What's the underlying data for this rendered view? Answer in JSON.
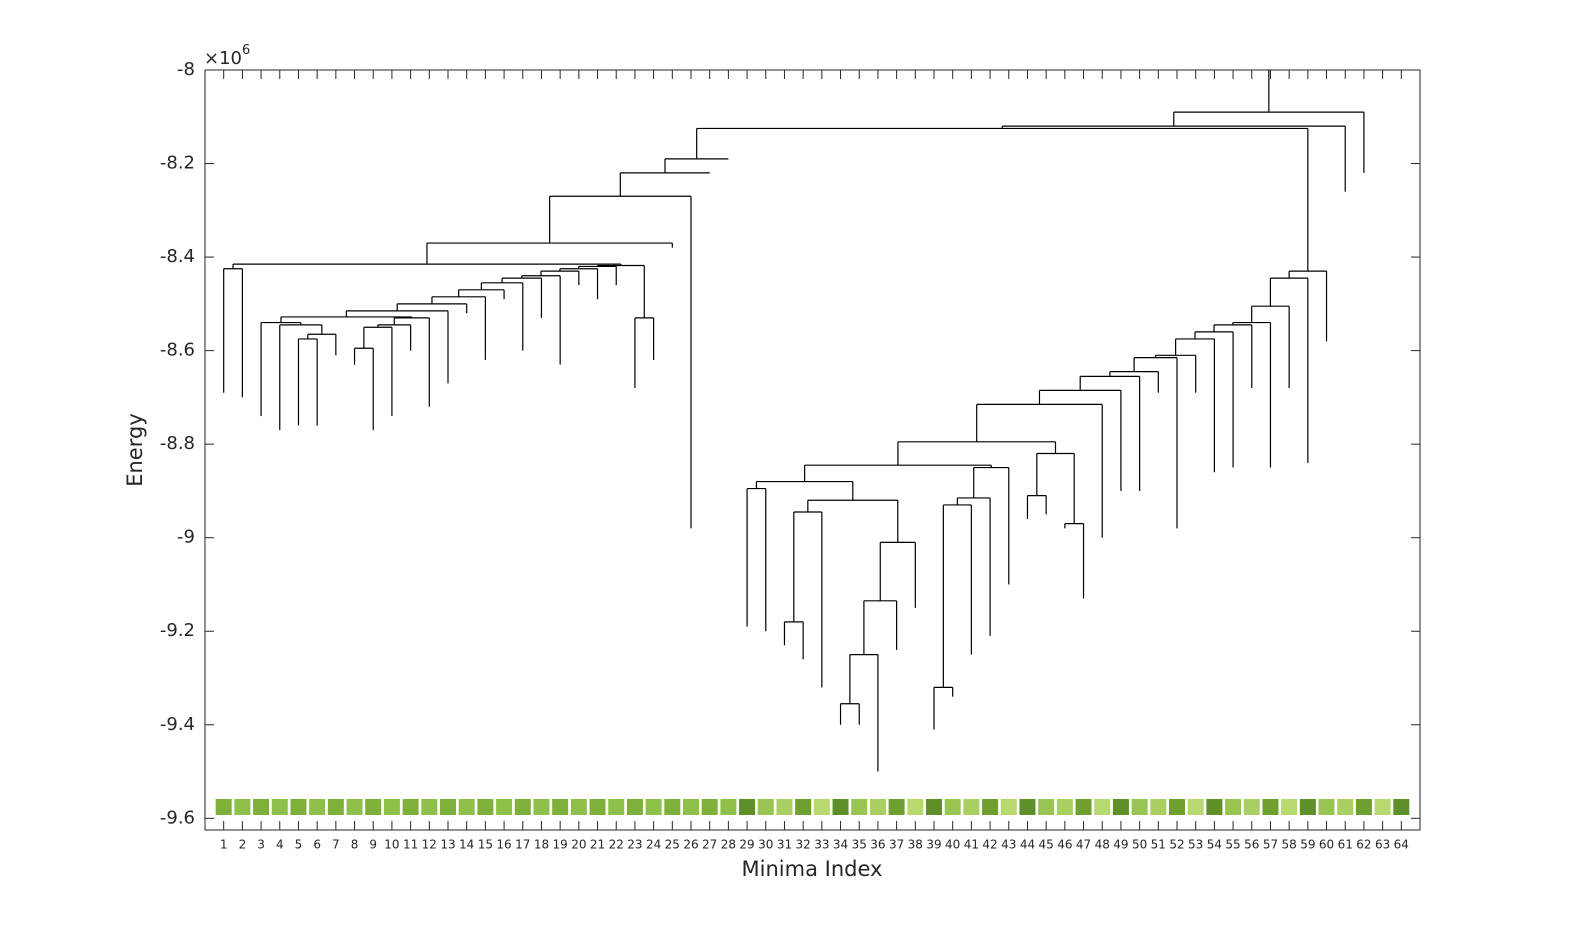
{
  "chart_data": {
    "type": "dendrogram",
    "x_label": "Minima Index",
    "y_label": "Energy",
    "y_multiplier": {
      "base": "×10",
      "exponent": "6"
    },
    "categories": [
      "1",
      "2",
      "3",
      "4",
      "5",
      "6",
      "7",
      "8",
      "9",
      "10",
      "11",
      "12",
      "13",
      "14",
      "15",
      "16",
      "17",
      "18",
      "19",
      "20",
      "21",
      "22",
      "23",
      "24",
      "25",
      "26",
      "27",
      "28",
      "29",
      "30",
      "31",
      "32",
      "33",
      "34",
      "35",
      "36",
      "37",
      "38",
      "39",
      "40",
      "41",
      "42",
      "43",
      "44",
      "45",
      "46",
      "47",
      "48",
      "49",
      "50",
      "51",
      "52",
      "53",
      "54",
      "55",
      "56",
      "57",
      "58",
      "59",
      "60",
      "61",
      "62",
      "63",
      "64"
    ],
    "leaf_energies": [
      -8.69,
      -8.7,
      -8.74,
      -8.77,
      -8.76,
      -8.76,
      -8.61,
      -8.63,
      -8.77,
      -8.74,
      -8.6,
      -8.72,
      -8.67,
      -8.52,
      -8.62,
      -8.49,
      -8.6,
      -8.53,
      -8.63,
      -8.46,
      -8.49,
      -8.46,
      -8.68,
      -8.62,
      -8.38,
      -8.98,
      -8.22,
      -8.19,
      -9.19,
      -9.2,
      -9.23,
      -9.26,
      -9.32,
      -9.4,
      -9.4,
      -9.5,
      -9.24,
      -9.15,
      -9.41,
      -9.34,
      -9.25,
      -9.21,
      -9.1,
      -8.96,
      -8.95,
      -8.98,
      -9.13,
      -9.0,
      -8.9,
      -8.9,
      -8.69,
      -8.98,
      -8.69,
      -8.86,
      -8.85,
      -8.68,
      -8.85,
      -8.68,
      -8.84,
      -8.58,
      -8.26,
      -8.22,
      null,
      null
    ],
    "merges": [
      [
        0,
        1,
        -8.425
      ],
      [
        4,
        5,
        -8.575
      ],
      [
        65,
        6,
        -8.565
      ],
      [
        3,
        66,
        -8.545
      ],
      [
        2,
        67,
        -8.54
      ],
      [
        7,
        8,
        -8.595
      ],
      [
        69,
        9,
        -8.55
      ],
      [
        70,
        10,
        -8.545
      ],
      [
        71,
        11,
        -8.53
      ],
      [
        68,
        72,
        -8.528
      ],
      [
        73,
        12,
        -8.515
      ],
      [
        74,
        13,
        -8.5
      ],
      [
        75,
        14,
        -8.485
      ],
      [
        76,
        15,
        -8.47
      ],
      [
        77,
        16,
        -8.455
      ],
      [
        78,
        17,
        -8.445
      ],
      [
        79,
        18,
        -8.44
      ],
      [
        80,
        19,
        -8.43
      ],
      [
        81,
        20,
        -8.425
      ],
      [
        82,
        21,
        -8.42
      ],
      [
        22,
        23,
        -8.53
      ],
      [
        83,
        84,
        -8.418
      ],
      [
        64,
        85,
        -8.415
      ],
      [
        86,
        24,
        -8.37
      ],
      [
        87,
        25,
        -8.27
      ],
      [
        88,
        26,
        -8.22
      ],
      [
        89,
        27,
        -8.19
      ],
      [
        33,
        34,
        -9.355
      ],
      [
        91,
        35,
        -9.25
      ],
      [
        92,
        36,
        -9.135
      ],
      [
        93,
        37,
        -9.01
      ],
      [
        30,
        31,
        -9.18
      ],
      [
        95,
        32,
        -8.945
      ],
      [
        96,
        94,
        -8.92
      ],
      [
        28,
        29,
        -8.895
      ],
      [
        98,
        97,
        -8.88
      ],
      [
        38,
        39,
        -9.32
      ],
      [
        100,
        40,
        -8.93
      ],
      [
        101,
        41,
        -8.915
      ],
      [
        102,
        42,
        -8.85
      ],
      [
        99,
        103,
        -8.845
      ],
      [
        43,
        44,
        -8.91
      ],
      [
        45,
        46,
        -8.97
      ],
      [
        105,
        106,
        -8.82
      ],
      [
        104,
        107,
        -8.795
      ],
      [
        108,
        47,
        -8.715
      ],
      [
        109,
        48,
        -8.685
      ],
      [
        110,
        49,
        -8.655
      ],
      [
        111,
        50,
        -8.645
      ],
      [
        112,
        51,
        -8.615
      ],
      [
        113,
        52,
        -8.61
      ],
      [
        114,
        53,
        -8.575
      ],
      [
        115,
        54,
        -8.56
      ],
      [
        116,
        55,
        -8.545
      ],
      [
        117,
        56,
        -8.54
      ],
      [
        118,
        57,
        -8.505
      ],
      [
        119,
        58,
        -8.445
      ],
      [
        120,
        59,
        -8.43
      ],
      [
        90,
        121,
        -8.125
      ],
      [
        122,
        60,
        -8.12
      ],
      [
        123,
        61,
        -8.09
      ]
    ],
    "xlim": [
      0,
      65
    ],
    "ylim": [
      -9.625,
      -8
    ],
    "yticks": [
      -9.6,
      -9.4,
      -9.2,
      -9,
      -8.8,
      -8.6,
      -8.4,
      -8.2,
      -8
    ],
    "line_color": "#000000"
  }
}
